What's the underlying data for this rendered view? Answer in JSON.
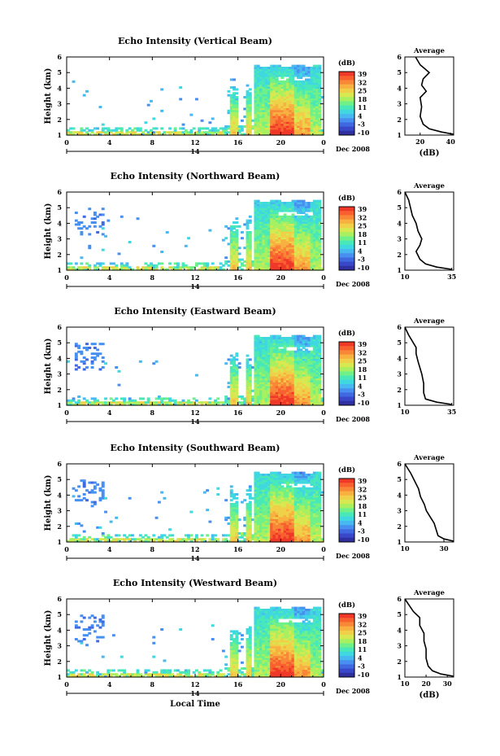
{
  "figure": {
    "xlabel": "Local Time",
    "date_label": "Dec 2008",
    "day_label": "14"
  },
  "colorbar": {
    "unit": "(dB)",
    "ticks": [
      "39",
      "32",
      "25",
      "18",
      "11",
      "4",
      "-3",
      "-10"
    ],
    "colors": [
      "#f03828",
      "#f86030",
      "#f88838",
      "#f8b040",
      "#f0d048",
      "#d8e850",
      "#a8f060",
      "#70f088",
      "#48e8b8",
      "#40d8e0",
      "#48b8f0",
      "#4890f0",
      "#4068e0",
      "#3848c8",
      "#3030a0"
    ]
  },
  "chart_data": [
    {
      "type": "heatmap",
      "title": "Echo Intensity (Vertical Beam)",
      "xlabel": "",
      "ylabel": "Height (km)",
      "xlim": [
        0,
        24
      ],
      "xticks": [
        "0",
        "4",
        "8",
        "12",
        "16",
        "20",
        "0"
      ],
      "ylim": [
        1,
        6
      ],
      "yticks": [
        "1",
        "2",
        "3",
        "4",
        "5",
        "6"
      ],
      "zlim": [
        -10,
        39
      ],
      "average": {
        "title": "Average",
        "xlabel": "(dB)",
        "xticks": [
          "20",
          "40"
        ],
        "xlim": [
          10,
          42
        ],
        "profile": [
          [
            42,
            1.05
          ],
          [
            34,
            1.2
          ],
          [
            26,
            1.4
          ],
          [
            22,
            1.7
          ],
          [
            20,
            2.2
          ],
          [
            21,
            2.8
          ],
          [
            20,
            3.4
          ],
          [
            24,
            3.8
          ],
          [
            21,
            4.2
          ],
          [
            22,
            4.6
          ],
          [
            26,
            5.0
          ],
          [
            20,
            5.5
          ],
          [
            17,
            6.0
          ]
        ]
      }
    },
    {
      "type": "heatmap",
      "title": "Echo Intensity (Northward Beam)",
      "xlabel": "",
      "ylabel": "Height (km)",
      "xlim": [
        0,
        24
      ],
      "xticks": [
        "0",
        "4",
        "8",
        "12",
        "16",
        "20",
        "0"
      ],
      "ylim": [
        1,
        6
      ],
      "yticks": [
        "1",
        "2",
        "3",
        "4",
        "5",
        "6"
      ],
      "zlim": [
        -10,
        39
      ],
      "average": {
        "title": "Average",
        "xlabel": "",
        "xticks": [
          "10",
          "35"
        ],
        "xlim": [
          10,
          36
        ],
        "profile": [
          [
            35,
            1.05
          ],
          [
            27,
            1.2
          ],
          [
            21,
            1.4
          ],
          [
            18,
            1.7
          ],
          [
            16,
            2.2
          ],
          [
            18,
            2.6
          ],
          [
            19,
            3.0
          ],
          [
            17,
            3.5
          ],
          [
            16,
            4.0
          ],
          [
            14,
            4.5
          ],
          [
            13,
            5.0
          ],
          [
            12,
            5.5
          ],
          [
            10,
            6.0
          ]
        ]
      }
    },
    {
      "type": "heatmap",
      "title": "Echo Intensity (Eastward Beam)",
      "xlabel": "",
      "ylabel": "Height (km)",
      "xlim": [
        0,
        24
      ],
      "xticks": [
        "0",
        "4",
        "8",
        "12",
        "16",
        "20",
        "0"
      ],
      "ylim": [
        1,
        6
      ],
      "yticks": [
        "1",
        "2",
        "3",
        "4",
        "5",
        "6"
      ],
      "zlim": [
        -10,
        39
      ],
      "average": {
        "title": "Average",
        "xlabel": "",
        "xticks": [
          "10",
          "35"
        ],
        "xlim": [
          10,
          36
        ],
        "profile": [
          [
            35,
            1.05
          ],
          [
            27,
            1.2
          ],
          [
            21,
            1.4
          ],
          [
            20,
            1.8
          ],
          [
            20,
            2.4
          ],
          [
            19,
            3.0
          ],
          [
            18,
            3.4
          ],
          [
            17,
            3.8
          ],
          [
            16,
            4.3
          ],
          [
            16,
            4.7
          ],
          [
            14,
            5.1
          ],
          [
            12,
            5.5
          ],
          [
            10,
            6.0
          ]
        ]
      }
    },
    {
      "type": "heatmap",
      "title": "Echo Intensity (Southward Beam)",
      "xlabel": "",
      "ylabel": "Height (km)",
      "xlim": [
        0,
        24
      ],
      "xticks": [
        "0",
        "4",
        "8",
        "12",
        "16",
        "20",
        "0"
      ],
      "ylim": [
        1,
        6
      ],
      "yticks": [
        "1",
        "2",
        "3",
        "4",
        "5",
        "6"
      ],
      "zlim": [
        -10,
        39
      ],
      "average": {
        "title": "Average",
        "xlabel": "",
        "xticks": [
          "10",
          "30"
        ],
        "xlim": [
          10,
          35
        ],
        "profile": [
          [
            35,
            1.05
          ],
          [
            30,
            1.2
          ],
          [
            27,
            1.4
          ],
          [
            26,
            1.8
          ],
          [
            25,
            2.2
          ],
          [
            23,
            2.6
          ],
          [
            21,
            3.0
          ],
          [
            20,
            3.4
          ],
          [
            18,
            3.9
          ],
          [
            17,
            4.4
          ],
          [
            15,
            4.9
          ],
          [
            13,
            5.4
          ],
          [
            10,
            6.0
          ]
        ]
      }
    },
    {
      "type": "heatmap",
      "title": "Echo Intensity (Westward Beam)",
      "xlabel": "Local Time",
      "ylabel": "Height (km)",
      "xlim": [
        0,
        24
      ],
      "xticks": [
        "0",
        "4",
        "8",
        "12",
        "16",
        "20",
        "0"
      ],
      "ylim": [
        1,
        6
      ],
      "yticks": [
        "1",
        "2",
        "3",
        "4",
        "5",
        "6"
      ],
      "zlim": [
        -10,
        39
      ],
      "average": {
        "title": "Average",
        "xlabel": "(dB)",
        "xticks": [
          "10",
          "20",
          "30"
        ],
        "xlim": [
          10,
          33
        ],
        "profile": [
          [
            33,
            1.05
          ],
          [
            27,
            1.2
          ],
          [
            23,
            1.4
          ],
          [
            21,
            1.7
          ],
          [
            20,
            2.2
          ],
          [
            20,
            2.8
          ],
          [
            19,
            3.3
          ],
          [
            19,
            3.8
          ],
          [
            17,
            4.3
          ],
          [
            17,
            4.8
          ],
          [
            14,
            5.2
          ],
          [
            12,
            5.6
          ],
          [
            10,
            6.0
          ]
        ]
      }
    }
  ]
}
